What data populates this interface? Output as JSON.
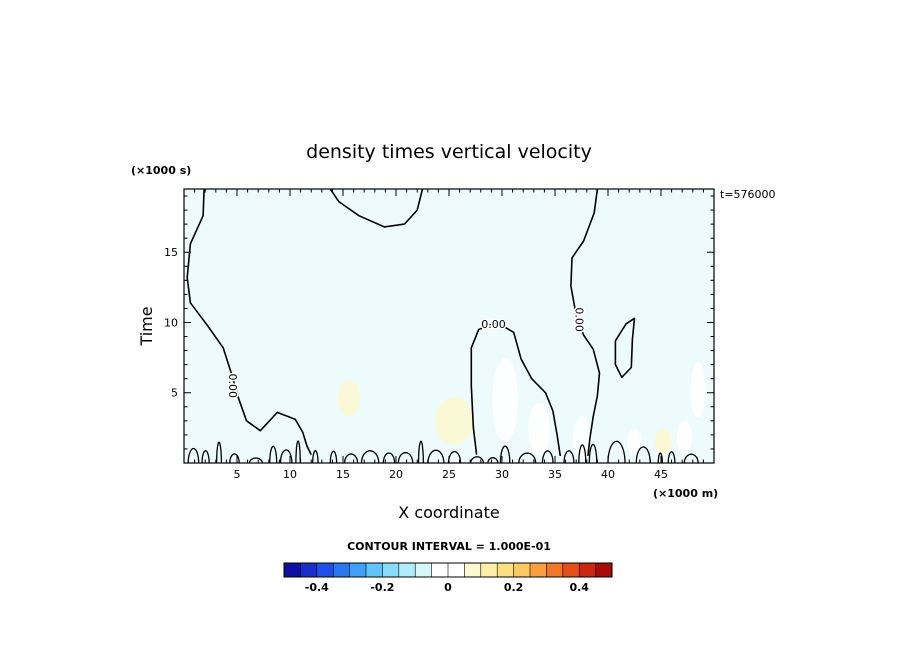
{
  "chart_data": {
    "type": "contour",
    "title": "density times vertical velocity",
    "xlabel": "X coordinate",
    "ylabel": "Time",
    "x_unit_label": "(×1000 m)",
    "y_unit_label": "(×1000 s)",
    "timestamp_label": "t=576000",
    "xlim": [
      0,
      50
    ],
    "ylim": [
      0,
      19.5
    ],
    "x_ticks": [
      5,
      10,
      15,
      20,
      25,
      30,
      35,
      40,
      45
    ],
    "y_ticks": [
      5,
      10,
      15
    ],
    "contour_labels": [
      {
        "text": "0.00",
        "x": 29.2,
        "y": 9.9,
        "angle": 0
      },
      {
        "text": "0.00",
        "x": 37.3,
        "y": 10.2,
        "angle": 90
      },
      {
        "text": "0.00",
        "x": 4.6,
        "y": 5.5,
        "angle": 90
      }
    ],
    "zero_contours": [
      [
        [
          1.9,
          19.5
        ],
        [
          1.8,
          17.6
        ],
        [
          0.6,
          15.6
        ],
        [
          0.3,
          13.2
        ],
        [
          0.6,
          11.4
        ],
        [
          2.2,
          9.8
        ],
        [
          3.7,
          8.2
        ],
        [
          4.5,
          6.3
        ],
        [
          5.1,
          4.7
        ],
        [
          5.9,
          3.0
        ],
        [
          7.2,
          2.3
        ],
        [
          8.8,
          3.6
        ],
        [
          10.5,
          3.1
        ],
        [
          11.2,
          2.2
        ],
        [
          11.6,
          1.2
        ],
        [
          12.0,
          0.6
        ]
      ],
      [
        [
          13.8,
          19.5
        ],
        [
          14.6,
          18.6
        ],
        [
          16.5,
          17.6
        ],
        [
          18.9,
          16.8
        ],
        [
          20.8,
          17.0
        ],
        [
          22.0,
          18.0
        ],
        [
          22.5,
          19.5
        ]
      ],
      [
        [
          39.0,
          19.5
        ],
        [
          38.7,
          17.8
        ],
        [
          37.7,
          15.8
        ],
        [
          36.6,
          14.6
        ],
        [
          36.5,
          12.6
        ],
        [
          37.0,
          10.5
        ],
        [
          37.7,
          9.1
        ],
        [
          38.6,
          8.1
        ],
        [
          39.2,
          6.4
        ],
        [
          39.0,
          4.8
        ],
        [
          38.6,
          3.3
        ],
        [
          38.3,
          1.8
        ],
        [
          38.1,
          0.5
        ]
      ],
      [
        [
          27.6,
          0.6
        ],
        [
          27.3,
          2.5
        ],
        [
          27.1,
          5.5
        ],
        [
          27.1,
          8.2
        ],
        [
          27.8,
          9.5
        ],
        [
          29.5,
          10.0
        ],
        [
          31.1,
          9.3
        ],
        [
          31.8,
          7.4
        ],
        [
          32.8,
          6.0
        ],
        [
          34.1,
          5.0
        ],
        [
          34.8,
          3.7
        ],
        [
          35.2,
          2.0
        ],
        [
          35.5,
          0.5
        ]
      ],
      [
        [
          40.7,
          8.7
        ],
        [
          41.7,
          9.9
        ],
        [
          42.5,
          10.3
        ],
        [
          42.3,
          8.8
        ],
        [
          42.2,
          6.8
        ],
        [
          41.3,
          6.1
        ],
        [
          40.7,
          7.0
        ],
        [
          40.7,
          8.7
        ]
      ]
    ],
    "fill_patches": [
      {
        "value": 0.05,
        "x": 15.6,
        "y": 4.6,
        "rx": 1.0,
        "ry": 1.3
      },
      {
        "value": 0.05,
        "x": 25.5,
        "y": 3.0,
        "rx": 1.8,
        "ry": 1.7
      },
      {
        "value": -0.05,
        "x": 30.3,
        "y": 4.5,
        "rx": 1.2,
        "ry": 3.0
      },
      {
        "value": -0.05,
        "x": 33.5,
        "y": 2.4,
        "rx": 1.0,
        "ry": 1.9
      },
      {
        "value": -0.05,
        "x": 37.6,
        "y": 1.8,
        "rx": 0.9,
        "ry": 1.5
      },
      {
        "value": -0.05,
        "x": 48.5,
        "y": 5.2,
        "rx": 0.7,
        "ry": 2.0
      },
      {
        "value": -0.05,
        "x": 47.2,
        "y": 1.8,
        "rx": 0.7,
        "ry": 1.2
      },
      {
        "value": 0.05,
        "x": 45.2,
        "y": 1.5,
        "rx": 0.8,
        "ry": 0.9
      },
      {
        "value": -0.05,
        "x": 42.5,
        "y": 1.5,
        "rx": 0.7,
        "ry": 0.9
      }
    ],
    "background_value": 0.02,
    "colorbar": {
      "label": "CONTOUR INTERVAL = 1.000E-01",
      "range": [
        -0.5,
        0.5
      ],
      "ticks": [
        {
          "value": -0.4,
          "text": "-0.4"
        },
        {
          "value": -0.2,
          "text": "-0.2"
        },
        {
          "value": 0,
          "text": "0"
        },
        {
          "value": 0.2,
          "text": "0.2"
        },
        {
          "value": 0.4,
          "text": "0.4"
        }
      ],
      "colors": [
        "#1010a0",
        "#1830c8",
        "#2050e8",
        "#2a78f0",
        "#40a0f8",
        "#60c4f8",
        "#88dcf8",
        "#b0ecfa",
        "#d6f6fc",
        "#ffffff",
        "#ffffff",
        "#fcf8d0",
        "#fcf0a8",
        "#fce080",
        "#fcc860",
        "#f8a040",
        "#f07828",
        "#e45018",
        "#cc2810",
        "#a80c08"
      ]
    }
  }
}
